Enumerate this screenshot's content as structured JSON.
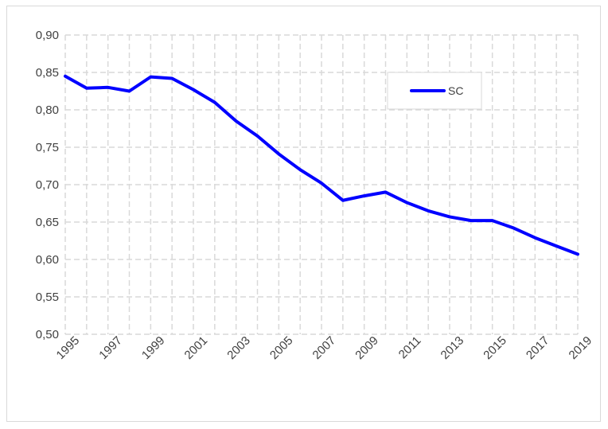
{
  "chart_data": {
    "type": "line",
    "title": "",
    "xlabel": "",
    "ylabel": "",
    "x": [
      1995,
      1996,
      1997,
      1998,
      1999,
      2000,
      2001,
      2002,
      2003,
      2004,
      2005,
      2006,
      2007,
      2008,
      2009,
      2010,
      2011,
      2012,
      2013,
      2014,
      2015,
      2016,
      2017,
      2018,
      2019
    ],
    "series": [
      {
        "name": "SC",
        "color": "#0000ff",
        "values": [
          0.845,
          0.829,
          0.83,
          0.825,
          0.844,
          0.842,
          0.827,
          0.81,
          0.785,
          0.765,
          0.741,
          0.72,
          0.702,
          0.679,
          0.685,
          0.69,
          0.676,
          0.665,
          0.657,
          0.652,
          0.652,
          0.642,
          0.629,
          0.618,
          0.607
        ]
      }
    ],
    "ylim": [
      0.5,
      0.9
    ],
    "y_ticks": [
      "0,50",
      "0,55",
      "0,60",
      "0,65",
      "0,70",
      "0,75",
      "0,80",
      "0,85",
      "0,90"
    ],
    "x_tick_labels": [
      "1995",
      "1997",
      "1999",
      "2001",
      "2003",
      "2005",
      "2007",
      "2009",
      "2011",
      "2013",
      "2015",
      "2017",
      "2019"
    ],
    "grid": true,
    "legend": "top-right",
    "grid_color": "#d9d9d9",
    "axis_text_color": "#404040"
  }
}
